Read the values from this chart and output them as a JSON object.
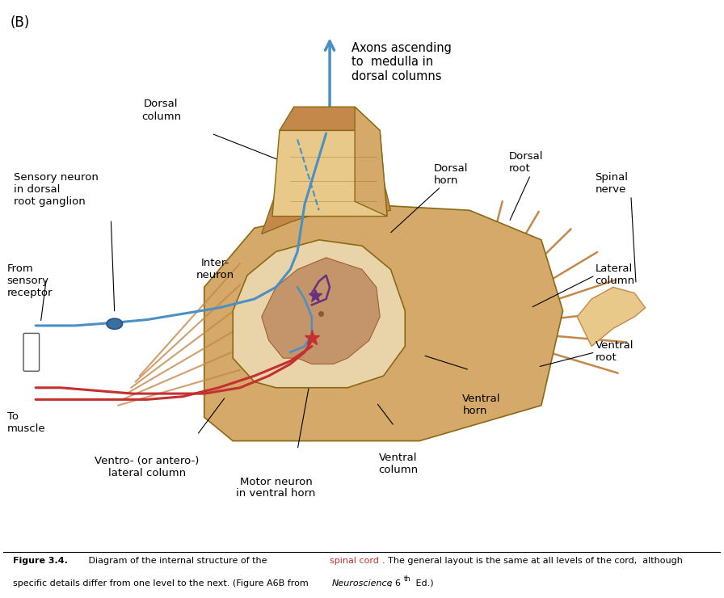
{
  "title_label": "(B)",
  "background_color": "#ffffff",
  "arrow_label": "Axons ascending\nto  medulla in\ndorsal columns",
  "labels": {
    "dorsal_column": "Dorsal\ncolumn",
    "sensory_neuron": "Sensory neuron\nin dorsal\nroot ganglion",
    "from_sensory": "From\nsensory\nreceptor",
    "interneuron": "Inter-\nneuron",
    "to_muscle": "To\nmuscle",
    "ventrolateral": "Ventro- (or antero-)\nlateral column",
    "motor_neuron": "Motor neuron\nin ventral horn",
    "ventral_column": "Ventral\ncolumn",
    "ventral_horn": "Ventral\nhorn",
    "dorsal_horn": "Dorsal\nhorn",
    "dorsal_root": "Dorsal\nroot",
    "spinal_nerve": "Spinal\nnerve",
    "lateral_column": "Lateral\ncolumn",
    "ventral_root": "Ventral\nroot"
  },
  "colors": {
    "spinal_cord_main": "#D4A96A",
    "spinal_cord_light": "#E8C98A",
    "spinal_cord_dark": "#C4894A",
    "gray_matter": "#C4956A",
    "white_matter_inner": "#E8D4A8",
    "nerve_blue": "#4A90C4",
    "nerve_red": "#C43030",
    "nerve_purple": "#6A3080",
    "arrow_blue": "#4A90C4",
    "ganglion_blue": "#3A70A0",
    "text_color": "#000000",
    "spinalcord_highlight": "#C43030"
  },
  "figsize": [
    8.96,
    7.4
  ],
  "dpi": 100
}
